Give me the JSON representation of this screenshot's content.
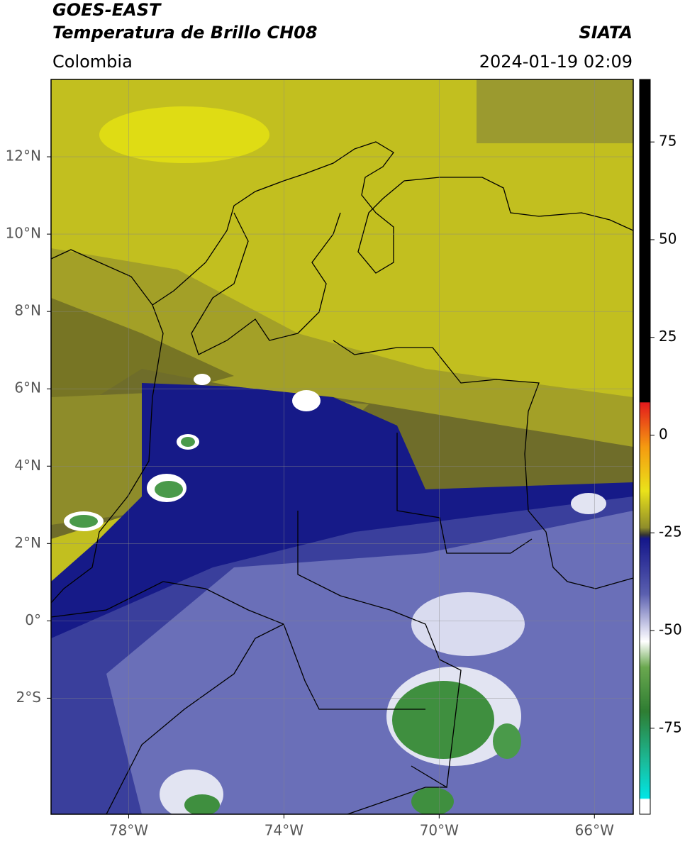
{
  "header": {
    "title": "GOES-EAST",
    "subtitle": "Temperatura de Brillo CH08",
    "source": "SIATA",
    "region": "Colombia",
    "datetime": "2024-01-19 02:09"
  },
  "map": {
    "lonlim": [
      -80,
      -65
    ],
    "latlim": [
      -5,
      14
    ],
    "grid": true,
    "xticks": [
      {
        "value": -78,
        "label": "78°W"
      },
      {
        "value": -74,
        "label": "74°W"
      },
      {
        "value": -70,
        "label": "70°W"
      },
      {
        "value": -66,
        "label": "66°W"
      }
    ],
    "yticks": [
      {
        "value": 12,
        "label": "12°N"
      },
      {
        "value": 10,
        "label": "10°N"
      },
      {
        "value": 8,
        "label": "8°N"
      },
      {
        "value": 6,
        "label": "6°N"
      },
      {
        "value": 4,
        "label": "4°N"
      },
      {
        "value": 2,
        "label": "2°N"
      },
      {
        "value": 0,
        "label": "0°"
      },
      {
        "value": -2,
        "label": "2°S"
      }
    ]
  },
  "colorbar": {
    "range": [
      -97,
      91
    ],
    "ticks": [
      75,
      50,
      25,
      0,
      -25,
      -50,
      -75
    ]
  }
}
